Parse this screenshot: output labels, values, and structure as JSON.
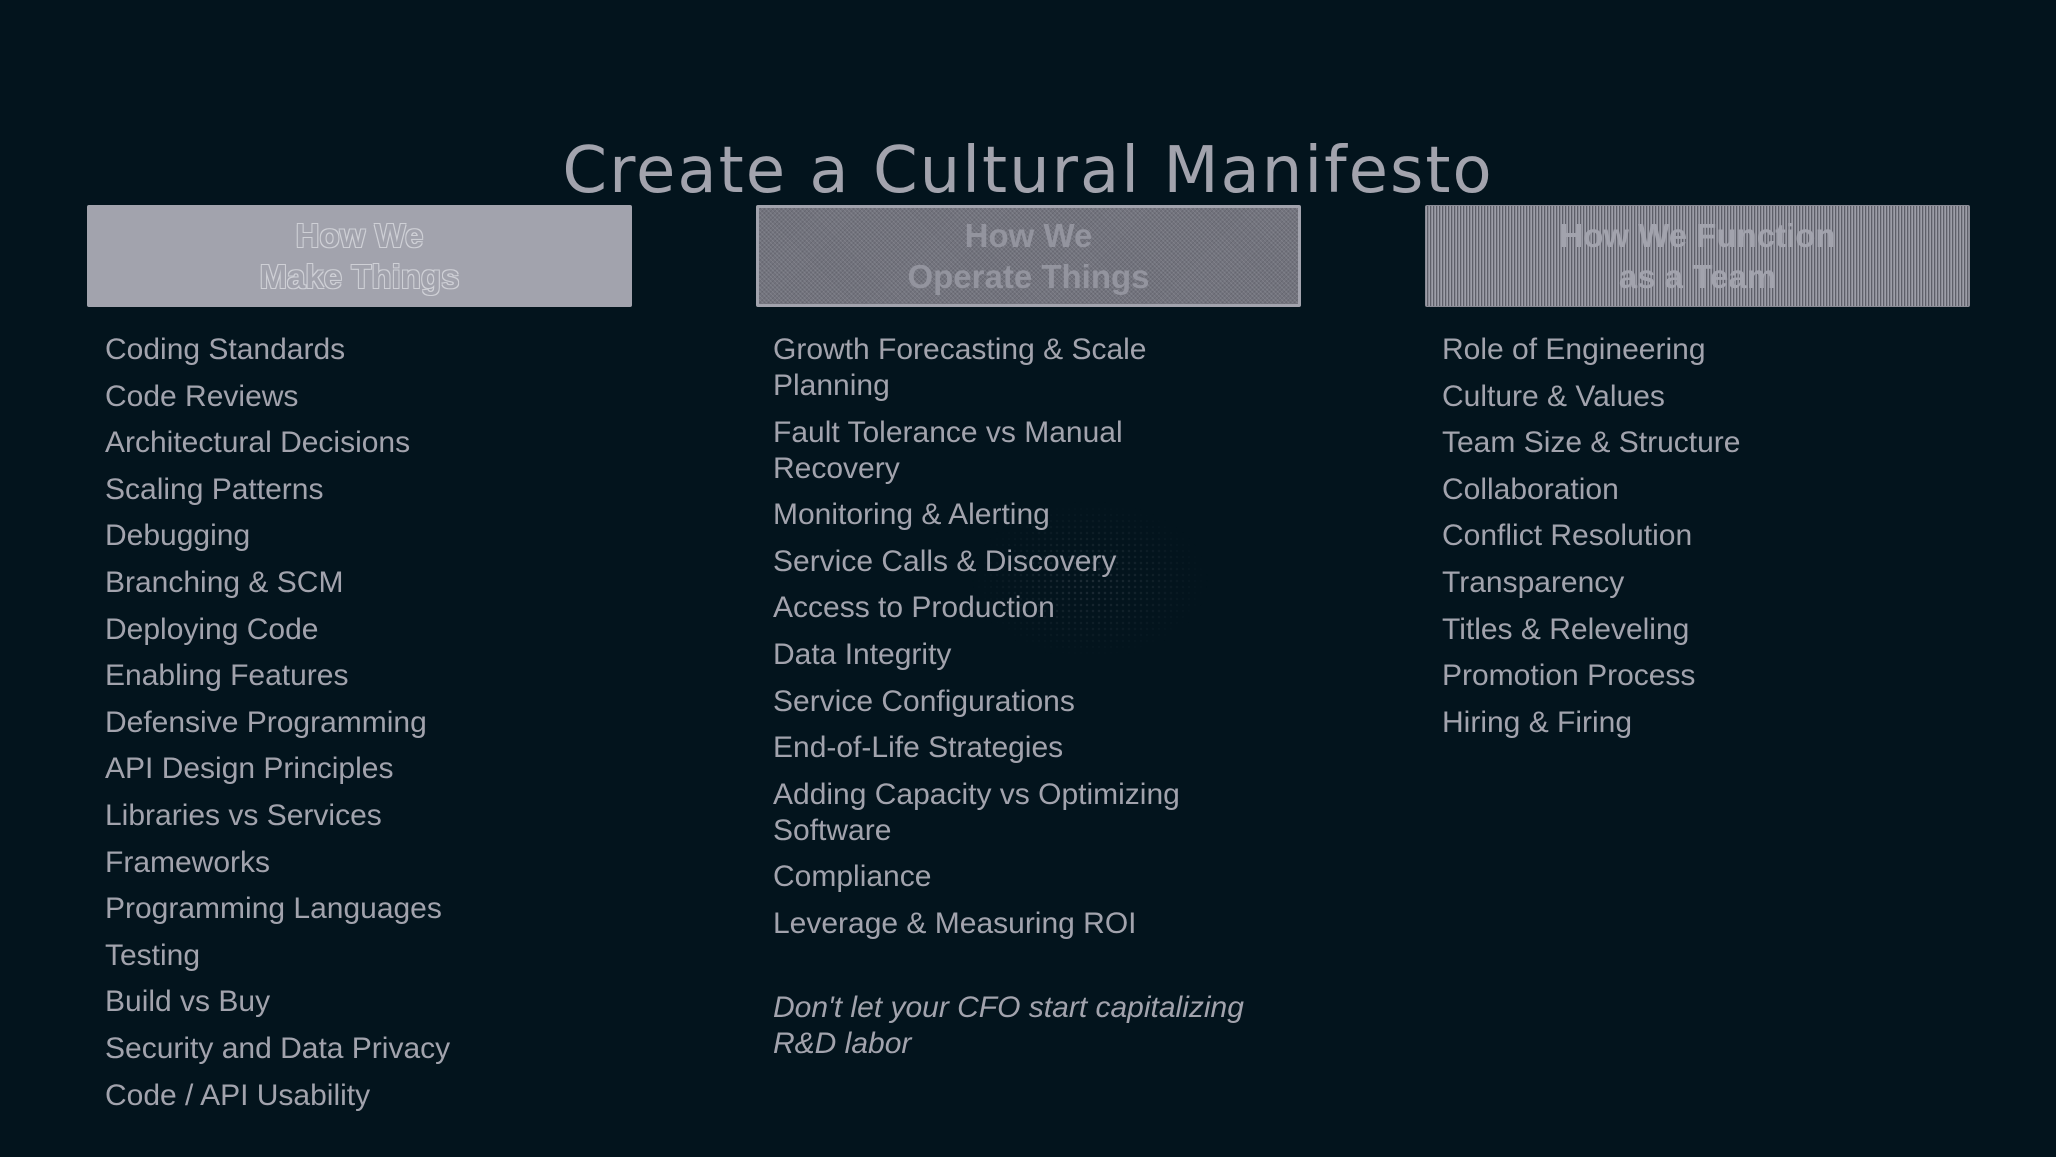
{
  "title": "Create a Cultural Manifesto",
  "columns": [
    {
      "header_lines": [
        "How We",
        "Make Things"
      ],
      "items": [
        "Coding Standards",
        "Code Reviews",
        "Architectural Decisions",
        "Scaling Patterns",
        "Debugging",
        "Branching & SCM",
        "Deploying Code",
        "Enabling Features",
        "Defensive Programming",
        "API Design Principles",
        "Libraries vs Services",
        "Frameworks",
        "Programming Languages",
        "Testing",
        "Build vs Buy",
        "Security and Data Privacy",
        "Code / API Usability"
      ]
    },
    {
      "header_lines": [
        "How We",
        "Operate Things"
      ],
      "items": [
        "Growth Forecasting & Scale Planning",
        "Fault Tolerance vs Manual Recovery",
        "Monitoring & Alerting",
        "Service Calls & Discovery",
        "Access to Production",
        "Data Integrity",
        "Service Configurations",
        "End-of-Life Strategies",
        "Adding Capacity vs Optimizing Software",
        "Compliance",
        "Leverage & Measuring ROI"
      ],
      "note": "Don't let your CFO start capitalizing R&D labor"
    },
    {
      "header_lines": [
        "How We Function",
        "as a Team"
      ],
      "items": [
        "Role of Engineering",
        "Culture & Values",
        "Team Size & Structure",
        "Collaboration",
        "Conflict Resolution",
        "Transparency",
        "Titles & Releveling",
        "Promotion Process",
        "Hiring & Firing"
      ]
    }
  ],
  "colors": {
    "background": "#03141d",
    "text": "#a2a3ad"
  }
}
